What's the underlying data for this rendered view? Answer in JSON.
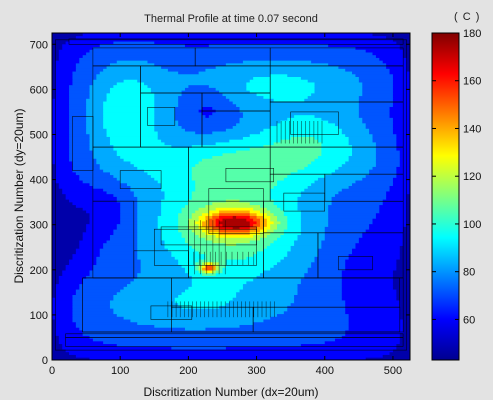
{
  "chart_data": {
    "type": "heatmap",
    "title": "Thermal Profile at time 0.07 second",
    "xlabel": "Discritization Number (dx=20um)",
    "ylabel": "Discritization Number (dy=20um)",
    "xlim": [
      0,
      525
    ],
    "ylim": [
      0,
      725
    ],
    "x_ticks": [
      0,
      100,
      200,
      300,
      400,
      500
    ],
    "y_ticks": [
      0,
      100,
      200,
      300,
      400,
      500,
      600,
      700
    ],
    "grid": false,
    "colorbar": {
      "unit": "( C )",
      "range": [
        43,
        180
      ],
      "ticks": [
        60,
        80,
        100,
        120,
        140,
        160,
        180
      ],
      "colormap": "jet"
    },
    "hotspots": [
      {
        "x": 270,
        "y": 305,
        "peak": 178,
        "sx": 48,
        "sy": 26
      },
      {
        "x": 230,
        "y": 205,
        "peak": 168,
        "sx": 14,
        "sy": 12
      }
    ]
  }
}
